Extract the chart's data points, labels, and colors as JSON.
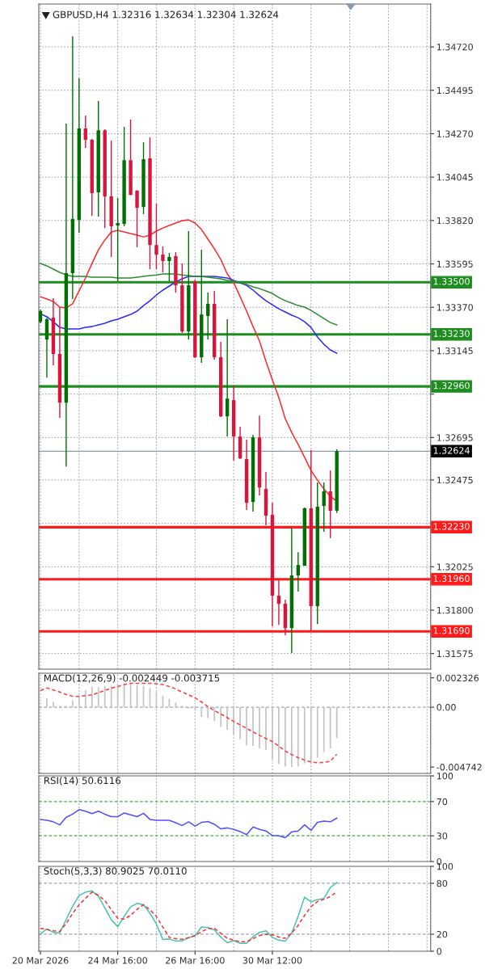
{
  "chart_data": [
    {
      "type": "candlestick",
      "title": "GBPUSD,H4 1.32316 1.32634 1.32304 1.32624",
      "categories": [
        null,
        null,
        null,
        null,
        null,
        null,
        null,
        null,
        null,
        null,
        null,
        null,
        null,
        null,
        null,
        null,
        null,
        null,
        null,
        null,
        null,
        null,
        null,
        null,
        null,
        null,
        null,
        null,
        null,
        null,
        null,
        null,
        null,
        null,
        null,
        null,
        null,
        null,
        null,
        null,
        null,
        null,
        null,
        null,
        null,
        null,
        null
      ],
      "ohlc": [
        [
          1.33295,
          1.33358,
          1.33287,
          1.3335
        ],
        [
          1.33203,
          1.33316,
          1.33006,
          1.33308
        ],
        [
          1.33316,
          1.33417,
          1.33069,
          1.33128
        ],
        [
          1.33128,
          1.33371,
          1.32797,
          1.32876
        ],
        [
          1.32876,
          1.34322,
          1.32545,
          1.33547
        ],
        [
          1.33547,
          1.34775,
          1.33413,
          1.33828
        ],
        [
          1.33823,
          1.34557,
          1.33756,
          1.34297
        ],
        [
          1.34297,
          1.34364,
          1.34196,
          1.34238
        ],
        [
          1.34238,
          1.34242,
          1.33844,
          1.33962
        ],
        [
          1.33966,
          1.34439,
          1.3384,
          1.34288
        ],
        [
          1.34288,
          1.34293,
          1.33781,
          1.33945
        ],
        [
          1.33945,
          1.34234,
          1.33631,
          1.3379
        ],
        [
          1.33794,
          1.33937,
          1.33505,
          1.33807
        ],
        [
          1.33802,
          1.34305,
          1.3379,
          1.34133
        ],
        [
          1.34133,
          1.34343,
          1.3395,
          1.33953
        ],
        [
          1.33974,
          1.33978,
          1.33681,
          1.33886
        ],
        [
          1.3389,
          1.34226,
          1.33853,
          1.34138
        ],
        [
          1.34142,
          1.34251,
          1.33568,
          1.33693
        ],
        [
          1.33693,
          1.33907,
          1.33568,
          1.33643
        ],
        [
          1.33643,
          1.33685,
          1.33551,
          1.3361
        ],
        [
          1.3361,
          1.33652,
          1.33505,
          1.33631
        ],
        [
          1.33635,
          1.33656,
          1.33446,
          1.33484
        ],
        [
          1.33484,
          1.33597,
          1.33237,
          1.33245
        ],
        [
          1.33245,
          1.33765,
          1.33203,
          1.33484
        ],
        [
          1.33505,
          1.33513,
          1.33107,
          1.33111
        ],
        [
          1.33111,
          1.33668,
          1.33082,
          1.33333
        ],
        [
          1.33325,
          1.33446,
          1.33203,
          1.33388
        ],
        [
          1.33388,
          1.33455,
          1.33099,
          1.33111
        ],
        [
          1.33111,
          1.33191,
          1.32801,
          1.32805
        ],
        [
          1.32805,
          1.33308,
          1.327,
          1.32897
        ],
        [
          1.32889,
          1.32964,
          1.32575,
          1.327
        ],
        [
          1.327,
          1.32751,
          1.32583,
          1.32587
        ],
        [
          1.32583,
          1.32684,
          1.32319,
          1.32357
        ],
        [
          1.32361,
          1.32709,
          1.32311,
          1.32696
        ],
        [
          1.32696,
          1.32809,
          1.32395,
          1.32436
        ],
        [
          1.32428,
          1.32516,
          1.3224,
          1.3229
        ],
        [
          1.32294,
          1.32357,
          1.31716,
          1.31875
        ],
        [
          1.31875,
          1.31955,
          1.31724,
          1.31833
        ],
        [
          1.31833,
          1.31854,
          1.3167,
          1.31707
        ],
        [
          1.31707,
          1.32227,
          1.31578,
          1.3198
        ],
        [
          1.3198,
          1.32101,
          1.31896,
          1.32034
        ],
        [
          1.3203,
          1.32332,
          1.3203,
          1.32328
        ],
        [
          1.32328,
          1.32629,
          1.31695,
          1.31821
        ],
        [
          1.31821,
          1.32462,
          1.31728,
          1.32336
        ],
        [
          1.3234,
          1.32462,
          1.32206,
          1.32416
        ],
        [
          1.32416,
          1.32524,
          1.32173,
          1.32315
        ],
        [
          1.32316,
          1.32634,
          1.32304,
          1.32624
        ]
      ],
      "colors": [
        "#007000",
        "#007000",
        "#dc143c",
        "#dc143c",
        "#007000",
        "#007000",
        "#007000",
        "#dc143c",
        "#dc143c",
        "#007000",
        "#dc143c",
        "#dc143c",
        "#007000",
        "#007000",
        "#dc143c",
        "#dc143c",
        "#007000",
        "#dc143c",
        "#dc143c",
        "#dc143c",
        "#007000",
        "#dc143c",
        "#dc143c",
        "#007000",
        "#dc143c",
        "#007000",
        "#007000",
        "#dc143c",
        "#dc143c",
        "#007000",
        "#dc143c",
        "#dc143c",
        "#dc143c",
        "#007000",
        "#dc143c",
        "#dc143c",
        "#dc143c",
        "#dc143c",
        "#dc143c",
        "#007000",
        "#007000",
        "#007000",
        "#dc143c",
        "#007000",
        "#007000",
        "#dc143c",
        "#007000"
      ],
      "series": [
        {
          "type": "line",
          "color": "#ff2a2a",
          "values": [
            1.33425,
            1.33413,
            1.334,
            1.33371,
            1.33367,
            1.33388,
            1.33455,
            1.33522,
            1.33597,
            1.33668,
            1.33719,
            1.33761,
            1.33769,
            1.33761,
            1.33752,
            1.33744,
            1.33735,
            1.33744,
            1.33765,
            1.33781,
            1.33794,
            1.33807,
            1.33819,
            1.33823,
            1.33807,
            1.33773,
            1.33723,
            1.33673,
            1.33618,
            1.33543,
            1.33497,
            1.33425,
            1.3335,
            1.3327,
            1.33195,
            1.3309,
            1.32994,
            1.32902,
            1.32793,
            1.32721,
            1.32659,
            1.32592,
            1.32524,
            1.32474,
            1.32428,
            1.3239,
            1.32365
          ]
        },
        {
          "type": "line",
          "color": "#2a2aff",
          "values": [
            1.33337,
            1.33321,
            1.33295,
            1.33266,
            1.33258,
            1.33258,
            1.33258,
            1.33266,
            1.3327,
            1.33279,
            1.33287,
            1.333,
            1.33308,
            1.33321,
            1.33333,
            1.3335,
            1.33379,
            1.33404,
            1.33434,
            1.33459,
            1.3348,
            1.33501,
            1.33518,
            1.3353,
            1.3353,
            1.3353,
            1.3353,
            1.3353,
            1.33526,
            1.33522,
            1.33509,
            1.33497,
            1.33484,
            1.33459,
            1.3343,
            1.33404,
            1.33383,
            1.33362,
            1.33346,
            1.33329,
            1.33316,
            1.33295,
            1.33266,
            1.33216,
            1.33178,
            1.33149,
            1.33132
          ]
        },
        {
          "type": "line",
          "color": "#2e8b2e",
          "values": [
            1.33597,
            1.33585,
            1.33568,
            1.33551,
            1.33538,
            1.3353,
            1.3353,
            1.3353,
            1.33526,
            1.33526,
            1.33526,
            1.33526,
            1.33522,
            1.33522,
            1.33522,
            1.33526,
            1.3353,
            1.33534,
            1.33538,
            1.33543,
            1.33543,
            1.33543,
            1.33538,
            1.33534,
            1.3353,
            1.3353,
            1.33526,
            1.33522,
            1.33518,
            1.33509,
            1.33505,
            1.33497,
            1.33488,
            1.33476,
            1.33467,
            1.33455,
            1.33442,
            1.33421,
            1.33404,
            1.33392,
            1.33379,
            1.33371,
            1.33354,
            1.33333,
            1.33312,
            1.33291,
            1.33279
          ]
        }
      ],
      "ylim": [
        1.31494,
        1.34942
      ],
      "yticks": [
        {
          "value": 1.3472,
          "label": "1.34720"
        },
        {
          "value": 1.34495,
          "label": "1.34495"
        },
        {
          "value": 1.3427,
          "label": "1.34270"
        },
        {
          "value": 1.34045,
          "label": "1.34045"
        },
        {
          "value": 1.3382,
          "label": "1.33820"
        },
        {
          "value": 1.33595,
          "label": "1.33595"
        },
        {
          "value": 1.3337,
          "label": "1.33370"
        },
        {
          "value": 1.33145,
          "label": "1.33145"
        },
        {
          "value": 1.3292,
          "label": null
        },
        {
          "value": 1.32695,
          "label": "1.32695"
        },
        {
          "value": 1.32475,
          "label": "1.32475"
        },
        {
          "value": 1.3225,
          "label": null
        },
        {
          "value": 1.32025,
          "label": "1.32025"
        },
        {
          "value": 1.318,
          "label": "1.31800"
        },
        {
          "value": 1.31575,
          "label": "1.31575"
        }
      ],
      "ref_lines": [
        {
          "axis": "y",
          "value": 1.335,
          "label": "1.33500",
          "color": "#1e8c1e",
          "line_style": "solid"
        },
        {
          "axis": "y",
          "value": 1.3323,
          "label": "1.33230",
          "color": "#1e8c1e",
          "line_style": "solid"
        },
        {
          "axis": "y",
          "value": 1.3296,
          "label": "1.32960",
          "color": "#1e8c1e",
          "line_style": "solid"
        },
        {
          "axis": "y",
          "value": 1.32624,
          "label": "1.32624",
          "color": "#8c9bb0",
          "line_style": "solid"
        },
        {
          "axis": "y",
          "value": 1.3223,
          "label": "1.32230",
          "color": "#ff1a1a",
          "line_style": "solid"
        },
        {
          "axis": "y",
          "value": 1.3196,
          "label": "1.31960",
          "color": "#ff1a1a",
          "line_style": "solid"
        },
        {
          "axis": "y",
          "value": 1.3169,
          "label": "1.31690",
          "color": "#ff1a1a",
          "line_style": "solid"
        }
      ],
      "grid": true,
      "tick_labels": "y"
    },
    {
      "type": "bar",
      "title": "MACD(12,26,9) -0.002449 -0.003715",
      "categories": [
        null,
        null,
        null,
        null,
        null,
        null,
        null,
        null,
        null,
        null,
        null,
        null,
        null,
        null,
        null,
        null,
        null,
        null,
        null,
        null,
        null,
        null,
        null,
        null,
        null,
        null,
        null,
        null,
        null,
        null,
        null,
        null,
        null,
        null,
        null,
        null,
        null,
        null,
        null,
        null,
        null,
        null,
        null,
        null,
        null,
        null,
        null
      ],
      "series": [
        {
          "type": "bar",
          "color": "#c4c4c4",
          "values": [
            null,
            0.00071,
            0.00042,
            0.00012,
            0.00012,
            0.00054,
            0.00091,
            0.00135,
            0.00164,
            0.00159,
            0.00169,
            0.00169,
            0.00177,
            0.00184,
            0.00184,
            0.00177,
            0.00169,
            0.00152,
            0.0012,
            0.00091,
            0.00066,
            0.00037,
            0.00012,
            -0.00012,
            -0.0002,
            -0.00076,
            -0.00086,
            -0.0011,
            -0.00155,
            -0.00179,
            -0.00216,
            -0.00253,
            -0.00302,
            -0.00307,
            -0.00326,
            -0.00338,
            -0.00412,
            -0.00449,
            -0.0047,
            -0.00474,
            -0.0047,
            -0.00444,
            -0.00449,
            -0.004,
            -0.00356,
            -0.00326,
            -0.00245
          ]
        },
        {
          "type": "line",
          "color": "#ff4040",
          "line_style": "dashed",
          "values": [
            0.00132,
            0.00152,
            0.00137,
            0.0012,
            0.00101,
            0.00086,
            0.00086,
            0.00091,
            0.00098,
            0.00115,
            0.00132,
            0.0015,
            0.00164,
            0.00179,
            0.00189,
            0.00189,
            0.00189,
            0.00189,
            0.00186,
            0.00179,
            0.00164,
            0.00145,
            0.0012,
            0.00098,
            0.00074,
            0.00042,
            5e-05,
            -0.00027,
            -0.00054,
            -0.00083,
            -0.00113,
            -0.0014,
            -0.00167,
            -0.00196,
            -0.00223,
            -0.00248,
            -0.00272,
            -0.00309,
            -0.00348,
            -0.00375,
            -0.004,
            -0.00419,
            -0.00434,
            -0.00441,
            -0.00437,
            -0.00427,
            -0.00372
          ]
        }
      ],
      "ylim": [
        -0.00525,
        0.00269
      ],
      "yticks": [
        0.002326,
        {
          "value": 0,
          "label": "0.00"
        },
        -0.004742
      ],
      "ref_lines": [
        {
          "axis": "y",
          "value": 0,
          "color": "#9aa5b8",
          "line_style": "dashed"
        }
      ],
      "grid": "x",
      "tick_labels": "y"
    },
    {
      "type": "line",
      "title": "RSI(14) 50.6116",
      "categories": [
        null,
        null,
        null,
        null,
        null,
        null,
        null,
        null,
        null,
        null,
        null,
        null,
        null,
        null,
        null,
        null,
        null,
        null,
        null,
        null,
        null,
        null,
        null,
        null,
        null,
        null,
        null,
        null,
        null,
        null,
        null,
        null,
        null,
        null,
        null,
        null,
        null,
        null,
        null,
        null,
        null,
        null,
        null,
        null,
        null,
        null,
        null
      ],
      "series": [
        {
          "type": "line",
          "color": "#5050ff",
          "values": [
            49.2,
            48.2,
            46.4,
            42.8,
            51.7,
            55.3,
            60.6,
            58.8,
            56.0,
            58.8,
            55.3,
            52.4,
            52.4,
            56.7,
            54.6,
            52.4,
            56.3,
            49.2,
            48.2,
            48.2,
            48.2,
            45.3,
            42.1,
            46.4,
            41.4,
            45.7,
            46.7,
            43.5,
            38.2,
            39.3,
            37.5,
            35.0,
            31.4,
            40.3,
            37.5,
            35.7,
            30.4,
            30.0,
            27.9,
            34.6,
            35.7,
            42.8,
            36.4,
            45.7,
            47.1,
            46.4,
            50.6116
          ]
        }
      ],
      "ylim": [
        0,
        100
      ],
      "yticks": [
        100,
        70,
        30,
        0
      ],
      "ref_lines": [
        {
          "axis": "y",
          "value": 70,
          "color": "#3cb043",
          "line_style": "dashed"
        },
        {
          "axis": "y",
          "value": 30,
          "color": "#3cb043",
          "line_style": "dashed"
        }
      ],
      "grid": "x",
      "tick_labels": "y"
    },
    {
      "type": "line",
      "title": "Stoch(5,3,3) 80.9025 70.0110",
      "categories": [
        "20 Mar 2026",
        null,
        null,
        null,
        null,
        null,
        null,
        null,
        null,
        null,
        null,
        null,
        "24 Mar 16:00",
        null,
        null,
        null,
        null,
        null,
        null,
        null,
        null,
        null,
        null,
        null,
        "26 Mar 16:00",
        null,
        null,
        null,
        null,
        null,
        null,
        null,
        null,
        null,
        null,
        null,
        "30 Mar 12:00",
        null,
        null,
        null,
        null,
        null,
        null,
        null,
        null,
        null,
        null
      ],
      "series": [
        {
          "type": "line",
          "color": "#45c4b0",
          "values": [
            20.4,
            26.3,
            22.2,
            21.5,
            37.4,
            53.0,
            65.6,
            69.6,
            71.1,
            64.8,
            51.1,
            37.0,
            28.9,
            41.1,
            52.2,
            56.3,
            54.8,
            44.8,
            32.2,
            13.7,
            14.4,
            12.2,
            12.2,
            15.9,
            18.1,
            28.5,
            27.8,
            25.2,
            16.7,
            10.0,
            12.6,
            9.3,
            9.3,
            17.0,
            22.2,
            24.1,
            16.3,
            13.0,
            11.8,
            21.5,
            41.1,
            63.7,
            58.2,
            60.8,
            62.2,
            75.2,
            80.9025
          ]
        },
        {
          "type": "line",
          "color": "#ff3030",
          "line_style": "dashed",
          "values": [
            27.0,
            25.6,
            24.1,
            23.3,
            32.6,
            44.5,
            54.8,
            62.2,
            69.6,
            65.9,
            59.6,
            48.9,
            38.9,
            37.8,
            42.2,
            49.3,
            54.8,
            48.9,
            41.1,
            28.5,
            16.3,
            14.8,
            14.1,
            15.9,
            18.5,
            23.0,
            26.7,
            27.0,
            21.1,
            15.2,
            13.0,
            11.1,
            11.1,
            14.8,
            18.5,
            20.0,
            19.3,
            16.7,
            15.2,
            21.5,
            30.4,
            42.2,
            52.6,
            58.5,
            61.1,
            64.5,
            70.011
          ]
        }
      ],
      "ylim": [
        0,
        100
      ],
      "yticks": [
        100,
        80,
        20,
        0
      ],
      "ref_lines": [
        {
          "axis": "y",
          "value": 80,
          "color": "#9aa5b8",
          "line_style": "dashed"
        },
        {
          "axis": "y",
          "value": 20,
          "color": "#9aa5b8",
          "line_style": "dashed"
        }
      ],
      "grid": "x"
    }
  ]
}
